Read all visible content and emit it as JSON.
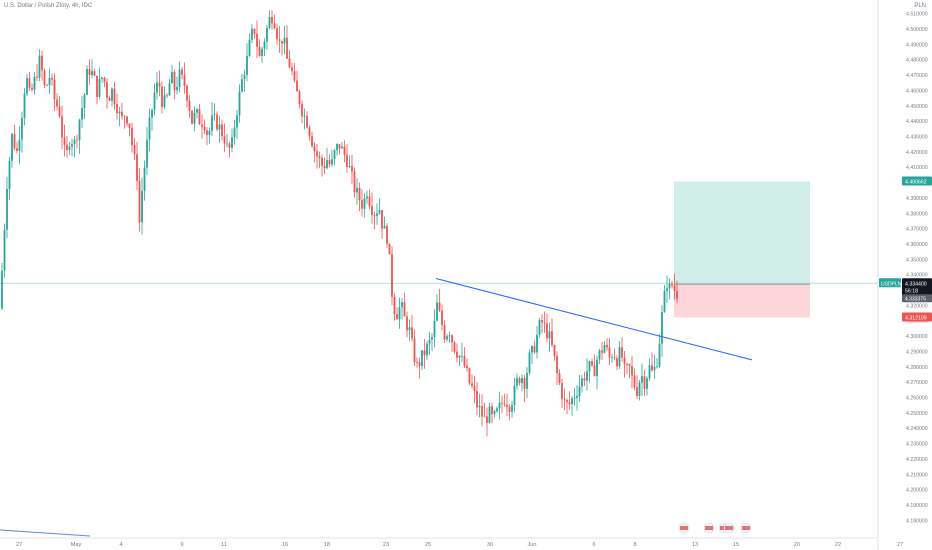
{
  "header": {
    "title": "U.S. Dollar / Polish Zloty, 4h, IDC",
    "currency": "PLN"
  },
  "colors": {
    "up": "#26a69a",
    "down": "#ef5350",
    "trendline": "#2962ff",
    "profit_zone": "#d1eee8",
    "loss_zone": "#fcd6d8",
    "price_line": "#b2dfdb",
    "axis_text": "#787b86"
  },
  "chart_data": {
    "type": "candlestick",
    "symbol": "USDPLN",
    "x_ticks": [
      "27",
      "May",
      "4",
      "9",
      "11",
      "16",
      "18",
      "23",
      "25",
      "30",
      "Jun",
      "6",
      "8",
      "13",
      "15",
      "20",
      "22",
      "27"
    ],
    "y_ticks": [
      "4.510000",
      "4.500000",
      "4.490000",
      "4.480000",
      "4.470000",
      "4.460000",
      "4.450000",
      "4.440000",
      "4.430000",
      "4.420000",
      "4.410000",
      "4.400000",
      "4.390000",
      "4.380000",
      "4.370000",
      "4.360000",
      "4.350000",
      "4.340000",
      "4.330000",
      "4.320000",
      "4.310000",
      "4.300000",
      "4.290000",
      "4.280000",
      "4.270000",
      "4.260000",
      "4.250000",
      "4.240000",
      "4.230000",
      "4.220000",
      "4.210000",
      "4.200000",
      "4.190000",
      "4.180000"
    ],
    "ylim": [
      4.175,
      4.515
    ],
    "close_path": [
      [
        0,
        4.318
      ],
      [
        3,
        4.355
      ],
      [
        7,
        4.4
      ],
      [
        12,
        4.43
      ],
      [
        17,
        4.42
      ],
      [
        21,
        4.44
      ],
      [
        26,
        4.47
      ],
      [
        30,
        4.455
      ],
      [
        36,
        4.47
      ],
      [
        40,
        4.48
      ],
      [
        45,
        4.46
      ],
      [
        50,
        4.47
      ],
      [
        54,
        4.455
      ],
      [
        60,
        4.445
      ],
      [
        63,
        4.425
      ],
      [
        66,
        4.415
      ],
      [
        70,
        4.43
      ],
      [
        75,
        4.425
      ],
      [
        79,
        4.44
      ],
      [
        84,
        4.455
      ],
      [
        88,
        4.475
      ],
      [
        93,
        4.47
      ],
      [
        97,
        4.46
      ],
      [
        103,
        4.47
      ],
      [
        108,
        4.455
      ],
      [
        112,
        4.46
      ],
      [
        117,
        4.45
      ],
      [
        121,
        4.44
      ],
      [
        125,
        4.445
      ],
      [
        129,
        4.44
      ],
      [
        133,
        4.42
      ],
      [
        137,
        4.405
      ],
      [
        139,
        4.37
      ],
      [
        142,
        4.395
      ],
      [
        146,
        4.42
      ],
      [
        150,
        4.44
      ],
      [
        155,
        4.46
      ],
      [
        159,
        4.465
      ],
      [
        163,
        4.45
      ],
      [
        167,
        4.455
      ],
      [
        171,
        4.47
      ],
      [
        175,
        4.46
      ],
      [
        179,
        4.47
      ],
      [
        184,
        4.465
      ],
      [
        188,
        4.455
      ],
      [
        192,
        4.44
      ],
      [
        196,
        4.445
      ],
      [
        200,
        4.44
      ],
      [
        204,
        4.44
      ],
      [
        208,
        4.43
      ],
      [
        212,
        4.44
      ],
      [
        216,
        4.44
      ],
      [
        220,
        4.435
      ],
      [
        224,
        4.43
      ],
      [
        228,
        4.42
      ],
      [
        232,
        4.425
      ],
      [
        235,
        4.44
      ],
      [
        239,
        4.455
      ],
      [
        243,
        4.47
      ],
      [
        247,
        4.48
      ],
      [
        251,
        4.495
      ],
      [
        255,
        4.5
      ],
      [
        259,
        4.48
      ],
      [
        263,
        4.49
      ],
      [
        267,
        4.5
      ],
      [
        271,
        4.51
      ],
      [
        275,
        4.505
      ],
      [
        279,
        4.49
      ],
      [
        283,
        4.495
      ],
      [
        287,
        4.48
      ],
      [
        291,
        4.475
      ],
      [
        295,
        4.46
      ],
      [
        299,
        4.455
      ],
      [
        303,
        4.445
      ],
      [
        307,
        4.44
      ],
      [
        311,
        4.43
      ],
      [
        315,
        4.42
      ],
      [
        319,
        4.415
      ],
      [
        323,
        4.41
      ],
      [
        327,
        4.415
      ],
      [
        331,
        4.41
      ],
      [
        335,
        4.42
      ],
      [
        339,
        4.425
      ],
      [
        343,
        4.42
      ],
      [
        347,
        4.415
      ],
      [
        351,
        4.405
      ],
      [
        355,
        4.395
      ],
      [
        359,
        4.39
      ],
      [
        363,
        4.385
      ],
      [
        367,
        4.395
      ],
      [
        371,
        4.385
      ],
      [
        375,
        4.38
      ],
      [
        379,
        4.385
      ],
      [
        383,
        4.37
      ],
      [
        387,
        4.365
      ],
      [
        390,
        4.345
      ],
      [
        393,
        4.32
      ],
      [
        397,
        4.315
      ],
      [
        401,
        4.32
      ],
      [
        405,
        4.31
      ],
      [
        409,
        4.305
      ],
      [
        413,
        4.29
      ],
      [
        417,
        4.28
      ],
      [
        421,
        4.285
      ],
      [
        425,
        4.29
      ],
      [
        429,
        4.295
      ],
      [
        433,
        4.3
      ],
      [
        437,
        4.32
      ],
      [
        441,
        4.31
      ],
      [
        445,
        4.3
      ],
      [
        449,
        4.305
      ],
      [
        453,
        4.295
      ],
      [
        457,
        4.29
      ],
      [
        461,
        4.285
      ],
      [
        465,
        4.28
      ],
      [
        469,
        4.27
      ],
      [
        473,
        4.265
      ],
      [
        477,
        4.255
      ],
      [
        481,
        4.25
      ],
      [
        485,
        4.245
      ],
      [
        489,
        4.25
      ],
      [
        493,
        4.245
      ],
      [
        497,
        4.25
      ],
      [
        501,
        4.255
      ],
      [
        505,
        4.26
      ],
      [
        509,
        4.255
      ],
      [
        513,
        4.26
      ],
      [
        517,
        4.27
      ],
      [
        521,
        4.275
      ],
      [
        525,
        4.27
      ],
      [
        529,
        4.285
      ],
      [
        533,
        4.29
      ],
      [
        537,
        4.3
      ],
      [
        541,
        4.31
      ],
      [
        545,
        4.305
      ],
      [
        549,
        4.3
      ],
      [
        553,
        4.29
      ],
      [
        557,
        4.275
      ],
      [
        561,
        4.265
      ],
      [
        565,
        4.255
      ],
      [
        569,
        4.255
      ],
      [
        573,
        4.26
      ],
      [
        577,
        4.265
      ],
      [
        581,
        4.27
      ],
      [
        585,
        4.275
      ],
      [
        589,
        4.28
      ],
      [
        593,
        4.275
      ],
      [
        597,
        4.285
      ],
      [
        601,
        4.29
      ],
      [
        605,
        4.295
      ],
      [
        609,
        4.285
      ],
      [
        613,
        4.29
      ],
      [
        617,
        4.285
      ],
      [
        621,
        4.29
      ],
      [
        625,
        4.275
      ],
      [
        629,
        4.28
      ],
      [
        633,
        4.27
      ],
      [
        637,
        4.265
      ],
      [
        641,
        4.275
      ],
      [
        645,
        4.27
      ],
      [
        649,
        4.28
      ],
      [
        653,
        4.275
      ],
      [
        657,
        4.285
      ],
      [
        660,
        4.3
      ],
      [
        663,
        4.32
      ],
      [
        667,
        4.335
      ],
      [
        670,
        4.33
      ],
      [
        673,
        4.335
      ],
      [
        676,
        4.325
      ],
      [
        679,
        4.334
      ]
    ],
    "trendline": {
      "from": [
        436,
        4.3375
      ],
      "to": [
        752,
        4.2845
      ]
    },
    "position": {
      "entry": 4.334,
      "target": 4.400662,
      "stop": 4.312109,
      "x_from": 674,
      "x_to": 810
    },
    "last_price": "4.334400",
    "countdown": "56:18",
    "sub_price": "4.333375",
    "target_label": "4.400662",
    "stop_label": "4.312109",
    "symbol_label": "USDPLN"
  }
}
